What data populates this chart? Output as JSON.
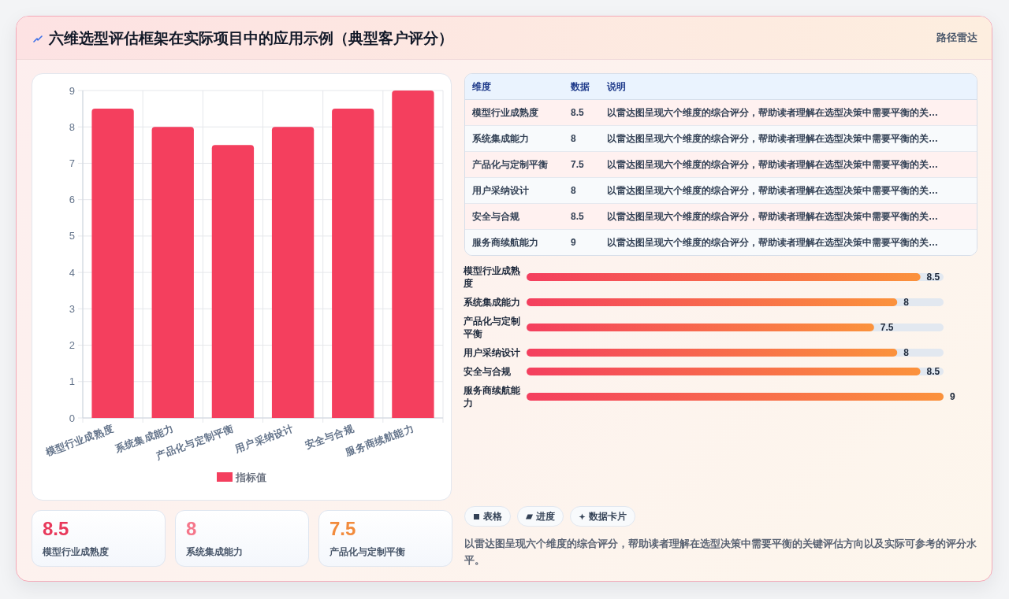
{
  "chart_data": [
    {
      "type": "bar",
      "title": "六维选型评估框架在实际项目中的应用示例（典型客户评分）",
      "categories": [
        "模型行业成熟度",
        "系统集成能力",
        "产品化与定制平衡",
        "用户采纳设计",
        "安全与合规",
        "服务商续航能力"
      ],
      "series": [
        {
          "name": "指标值",
          "color": "#f43f5e",
          "values": [
            8.5,
            8,
            7.5,
            8,
            8.5,
            9
          ]
        }
      ],
      "ylim": [
        0,
        9
      ],
      "yticks": [
        0,
        1,
        2,
        3,
        4,
        5,
        6,
        7,
        8,
        9
      ],
      "grid": true,
      "legend": "bottom"
    },
    {
      "type": "other",
      "subtitle": "路径雷达",
      "categories": [
        "模型行业成熟度",
        "系统集成能力",
        "产品化与定制平衡",
        "用户采纳设计",
        "安全与合规",
        "服务商续航能力"
      ],
      "values": [
        8.5,
        8,
        7.5,
        8,
        8.5,
        9
      ],
      "data_labels": true,
      "annotations": [
        "维度",
        "数据",
        "说明",
        "以雷达图呈现六个维度的综合评分，帮助读者理解在选型决策中需要平衡的关…",
        "以雷达图呈现六个维度的综合评分，帮助读者理解在选型决策中需要平衡的关…",
        "以雷达图呈现六个维度的综合评分，帮助读者理解在选型决策中需要平衡的关…",
        "以雷达图呈现六个维度的综合评分，帮助读者理解在选型决策中需要平衡的关…",
        "以雷达图呈现六个维度的综合评分，帮助读者理解在选型决策中需要平衡的关…",
        "以雷达图呈现六个维度的综合评分，帮助读者理解在选型决策中需要平衡的关…"
      ]
    },
    {
      "type": "bar",
      "orientation": "horizontal",
      "categories": [
        "模型行业成熟度",
        "系统集成能力",
        "产品化与定制平衡",
        "用户采纳设计",
        "安全与合规",
        "服务商续航能力"
      ],
      "series": [
        {
          "color": "#f43f5e",
          "values": [
            8.5,
            8,
            7.5,
            8,
            8.5,
            9
          ]
        }
      ],
      "data_labels": true,
      "tick_labels": "y"
    },
    {
      "type": "other",
      "annotations": [
        "8.5",
        "模型行业成熟度",
        "8",
        "系统集成能力",
        "7.5",
        "产品化与定制平衡"
      ]
    },
    {
      "type": "other",
      "annotations": [
        "表格",
        "进度",
        "数据卡片",
        "以雷达图呈现六个维度的综合评分，帮助读者理解在选型决策中需要平衡的关键评估方向以及实际可参考的评分水平。"
      ]
    }
  ]
}
